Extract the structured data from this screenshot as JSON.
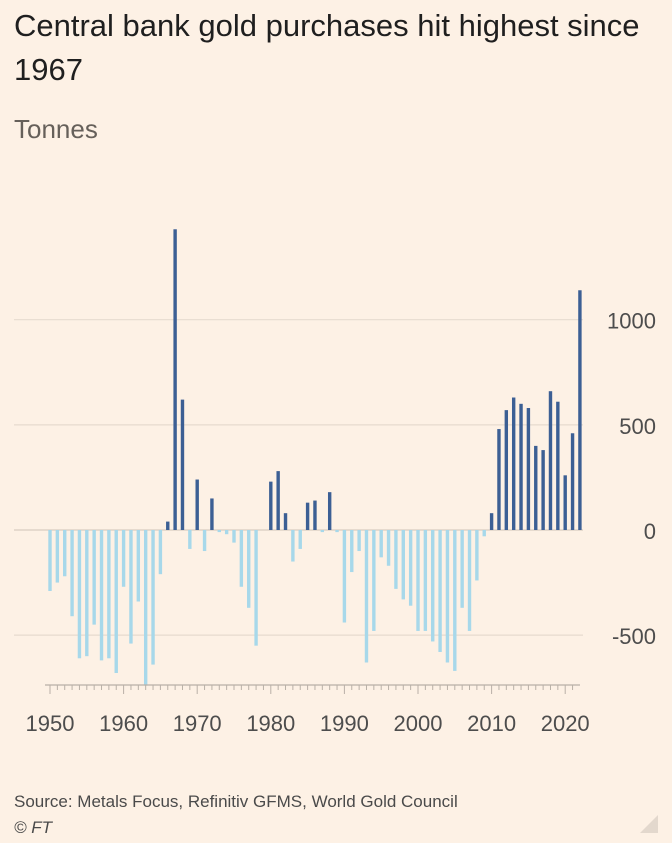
{
  "title": "Central bank gold purchases hit highest since 1967",
  "subtitle": "Tonnes",
  "source": "Source: Metals Focus, Refinitiv GFMS, World Gold Council",
  "credit": "© FT",
  "colors": {
    "positive": "#3c5f94",
    "negative": "#a7d8ea",
    "grid": "#e6dbcf",
    "background": "#fdf1e5"
  },
  "chart_data": {
    "type": "bar",
    "title": "Central bank gold purchases hit highest since 1967",
    "ylabel": "Tonnes",
    "xlim": [
      1950,
      2022
    ],
    "ylim": [
      -750,
      1500
    ],
    "yticks": [
      1000,
      500,
      0,
      -500
    ],
    "xticks": [
      1950,
      1960,
      1970,
      1980,
      1990,
      2000,
      2010,
      2020
    ],
    "years": [
      1950,
      1951,
      1952,
      1953,
      1954,
      1955,
      1956,
      1957,
      1958,
      1959,
      1960,
      1961,
      1962,
      1963,
      1964,
      1965,
      1966,
      1967,
      1968,
      1969,
      1970,
      1971,
      1972,
      1973,
      1974,
      1975,
      1976,
      1977,
      1978,
      1979,
      1980,
      1981,
      1982,
      1983,
      1984,
      1985,
      1986,
      1987,
      1988,
      1989,
      1990,
      1991,
      1992,
      1993,
      1994,
      1995,
      1996,
      1997,
      1998,
      1999,
      2000,
      2001,
      2002,
      2003,
      2004,
      2005,
      2006,
      2007,
      2008,
      2009,
      2010,
      2011,
      2012,
      2013,
      2014,
      2015,
      2016,
      2017,
      2018,
      2019,
      2020,
      2021,
      2022
    ],
    "values": [
      -290,
      -250,
      -220,
      -410,
      -610,
      -600,
      -450,
      -620,
      -610,
      -680,
      -270,
      -540,
      -340,
      -740,
      -640,
      -210,
      40,
      1430,
      620,
      -90,
      240,
      -100,
      150,
      -10,
      -20,
      -60,
      -270,
      -370,
      -550,
      0,
      230,
      280,
      80,
      -150,
      -90,
      130,
      140,
      -10,
      180,
      -10,
      -440,
      -200,
      -100,
      -630,
      -480,
      -130,
      -170,
      -280,
      -330,
      -360,
      -480,
      -480,
      -530,
      -580,
      -630,
      -670,
      -370,
      -480,
      -240,
      -30,
      80,
      480,
      570,
      630,
      600,
      580,
      400,
      380,
      660,
      610,
      260,
      460,
      1140
    ]
  }
}
